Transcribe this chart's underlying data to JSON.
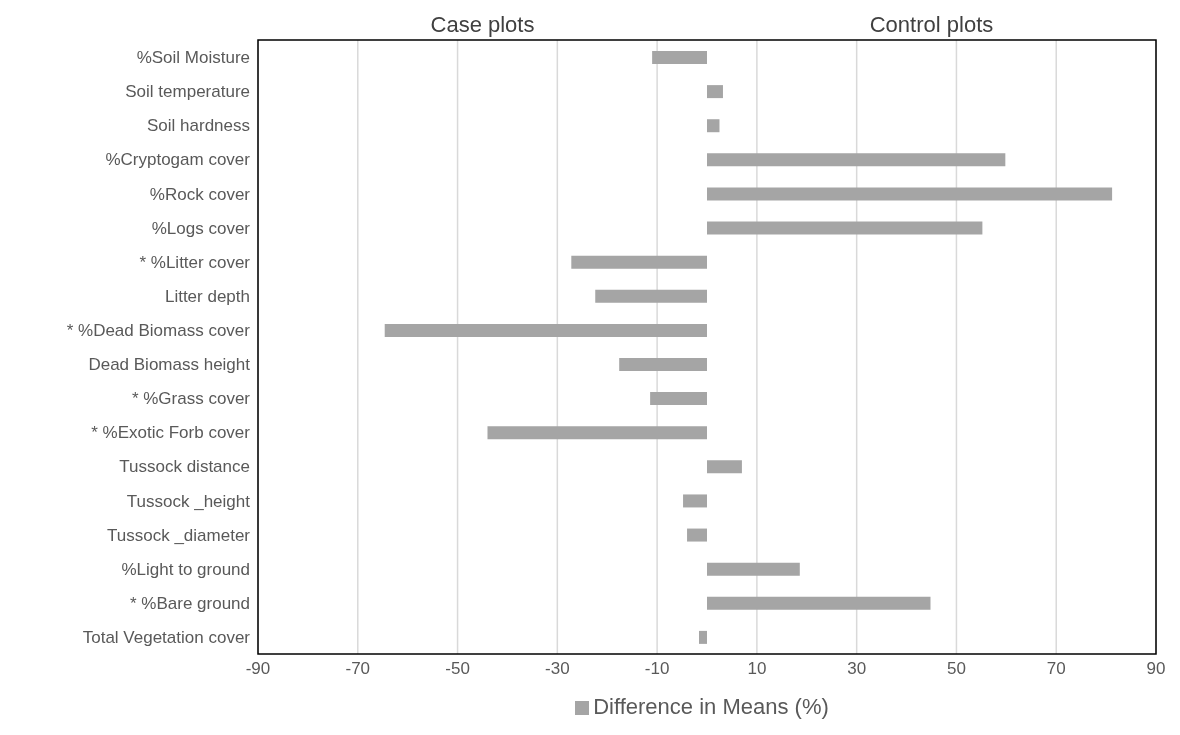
{
  "chart_data": {
    "type": "bar",
    "orientation": "horizontal",
    "categories": [
      "%Soil Moisture",
      "Soil temperature",
      "Soil hardness",
      "%Cryptogam cover",
      "%Rock cover",
      "%Logs cover",
      "* %Litter cover",
      "Litter depth",
      "* %Dead Biomass cover",
      "Dead Biomass height",
      "* %Grass cover",
      "* %Exotic Forb cover",
      "Tussock distance",
      "Tussock _height",
      "Tussock _diameter",
      "%Light to ground",
      "* %Bare ground",
      "Total Vegetation cover"
    ],
    "series": [
      {
        "name": "Difference in Means (%)",
        "color": "#a5a5a5",
        "values": [
          -11,
          3.2,
          2.5,
          59.8,
          81.2,
          55.2,
          -27.2,
          -22.4,
          -64.6,
          -17.6,
          -11.4,
          -44,
          7,
          -4.8,
          -4,
          18.6,
          44.8,
          -1.6
        ]
      }
    ],
    "xlim": [
      -90,
      90
    ],
    "xticks": [
      -90,
      -70,
      -50,
      -30,
      -10,
      10,
      30,
      50,
      70,
      90
    ],
    "grid": "x",
    "legend": "bottom",
    "annotations": [
      "Case plots",
      "Control plots"
    ]
  }
}
